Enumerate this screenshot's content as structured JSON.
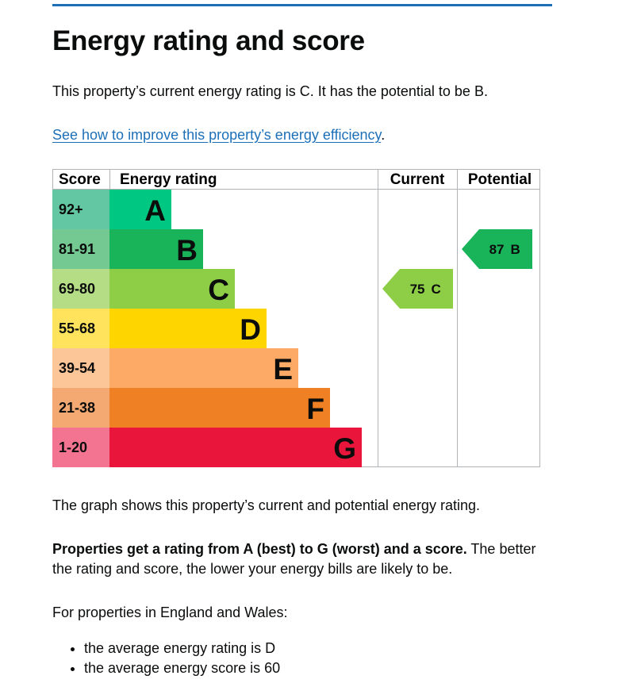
{
  "heading": "Energy rating and score",
  "intro": "This property’s current energy rating is C. It has the potential to be B.",
  "improve_link": "See how to improve this property’s energy efficiency",
  "improve_link_suffix": ".",
  "chart_data": {
    "type": "table",
    "headers": {
      "score": "Score",
      "rating": "Energy rating",
      "current": "Current",
      "potential": "Potential"
    },
    "bands": [
      {
        "score": "92+",
        "letter": "A",
        "color": "#00c781",
        "score_color": "#64c7a3"
      },
      {
        "score": "81-91",
        "letter": "B",
        "color": "#19b459",
        "score_color": "#73c991"
      },
      {
        "score": "69-80",
        "letter": "C",
        "color": "#8dce46",
        "score_color": "#b4dd86"
      },
      {
        "score": "55-68",
        "letter": "D",
        "color": "#ffd500",
        "score_color": "#ffe35c"
      },
      {
        "score": "39-54",
        "letter": "E",
        "color": "#fcaa65",
        "score_color": "#fdc699"
      },
      {
        "score": "21-38",
        "letter": "F",
        "color": "#ef8023",
        "score_color": "#f4a972"
      },
      {
        "score": "1-20",
        "letter": "G",
        "color": "#e9153b",
        "score_color": "#f27490"
      }
    ],
    "current": {
      "score": 75,
      "letter": "C",
      "band_index": 2,
      "color": "#8dce46"
    },
    "potential": {
      "score": 87,
      "letter": "B",
      "band_index": 1,
      "color": "#19b459"
    }
  },
  "graph_note": "The graph shows this property’s current and potential energy rating.",
  "rating_note_bold": "Properties get a rating from A (best) to G (worst) and a score.",
  "rating_note_rest": " The better the rating and score, the lower your energy bills are likely to be.",
  "average_intro": "For properties in England and Wales:",
  "averages": [
    "the average energy rating is D",
    "the average energy score is 60"
  ]
}
